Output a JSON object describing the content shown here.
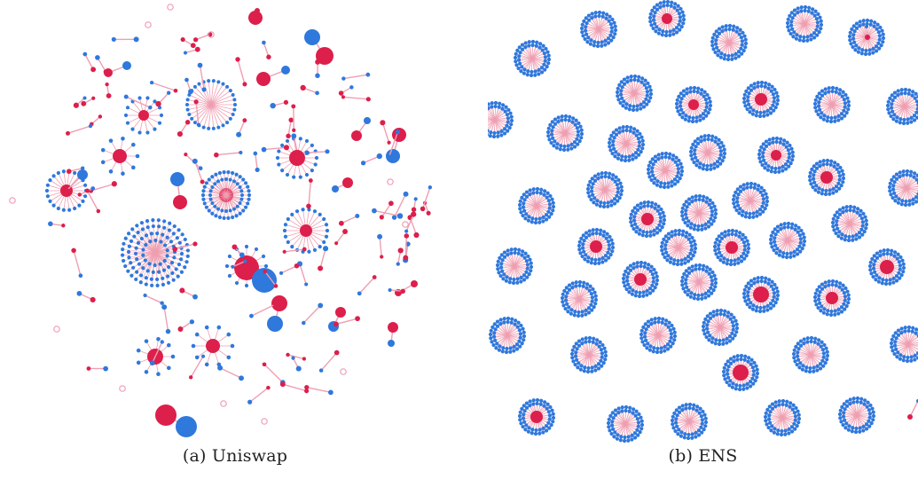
{
  "figure": {
    "panels": [
      {
        "caption": "(a) Uniswap"
      },
      {
        "caption": "(b) ENS"
      }
    ],
    "colors": {
      "red_node": "#dc1f4b",
      "blue_node": "#2f78dc",
      "edge": "#ef9fb2"
    }
  }
}
